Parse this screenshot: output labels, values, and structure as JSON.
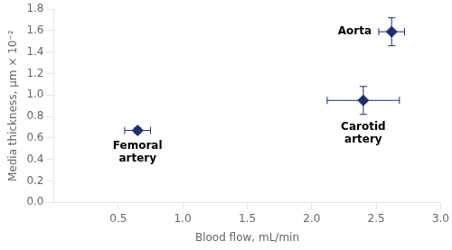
{
  "chart_data": {
    "type": "scatter",
    "xlabel": "Blood flow, mL/min",
    "ylabel": "Media thickness, μm × 10⁻²",
    "x": [
      0.65,
      2.4,
      2.62
    ],
    "values": [
      0.67,
      0.95,
      1.59
    ],
    "xerr": [
      0.1,
      0.28,
      0.1
    ],
    "yerr": [
      0.025,
      0.13,
      0.13
    ],
    "annotations": [
      "Femoral\nartery",
      "Carotid\nartery",
      "Aorta"
    ],
    "color": "#1c2f6e",
    "marker": "diamond",
    "xlim": [
      0.0,
      3.0
    ],
    "xticks": [
      0.5,
      {
        "value": 1,
        "label": "1.0"
      },
      1.5,
      {
        "value": 2,
        "label": "2.0"
      },
      2.5,
      {
        "value": 3,
        "label": "3.0"
      }
    ],
    "ylim": [
      0.0,
      1.8
    ],
    "yticks": [
      {
        "value": 0,
        "label": "0.0"
      },
      0.2,
      0.4,
      0.6,
      0.8,
      {
        "value": 1,
        "label": "1.0"
      },
      1.2,
      1.4,
      1.6,
      1.8
    ],
    "grid": false
  }
}
